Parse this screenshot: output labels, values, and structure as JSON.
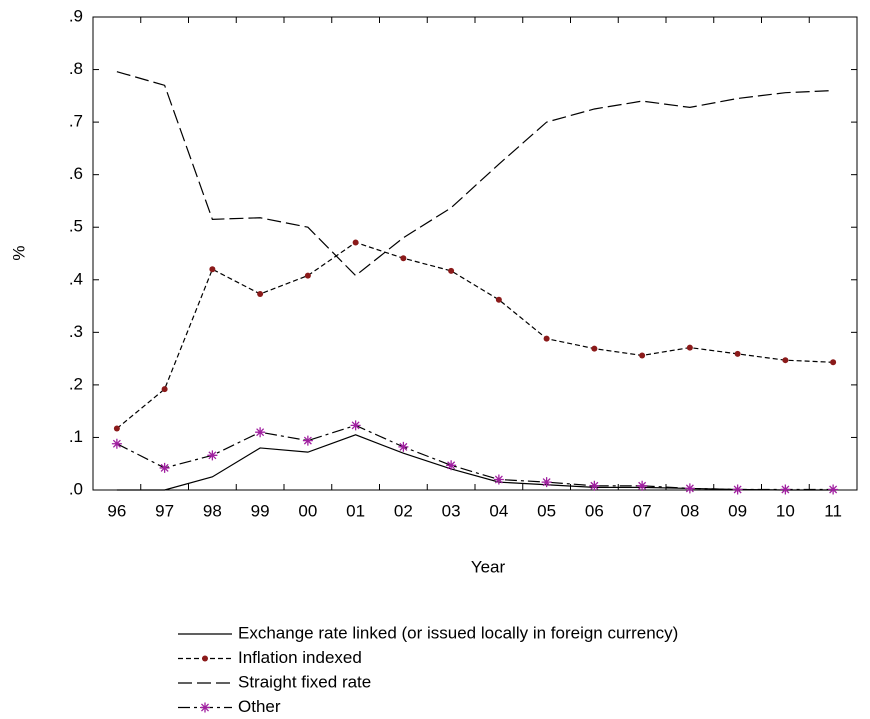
{
  "chart_data": {
    "type": "line",
    "y_label": "%",
    "x_label": "Year",
    "categories": [
      "96",
      "97",
      "98",
      "99",
      "00",
      "01",
      "02",
      "03",
      "04",
      "05",
      "06",
      "07",
      "08",
      "09",
      "10",
      "11"
    ],
    "ylim": [
      0,
      0.9
    ],
    "yticks": [
      {
        "value": 0,
        "label": ".0"
      },
      {
        "value": 0.1,
        "label": ".1"
      },
      {
        "value": 0.2,
        "label": ".2"
      },
      {
        "value": 0.3,
        "label": ".3"
      },
      {
        "value": 0.4,
        "label": ".4"
      },
      {
        "value": 0.5,
        "label": ".5"
      },
      {
        "value": 0.6,
        "label": ".6"
      },
      {
        "value": 0.7,
        "label": ".7"
      },
      {
        "value": 0.8,
        "label": ".8"
      },
      {
        "value": 0.9,
        "label": ".9"
      }
    ],
    "grid": false,
    "legend": "bottom",
    "series": [
      {
        "name": "Exchange rate linked (or issued locally in foreign currency)",
        "color": "#000000",
        "dash": "solid",
        "marker": "none",
        "marker_color": "#000000",
        "values": [
          0,
          0,
          0.025,
          0.08,
          0.072,
          0.105,
          0.07,
          0.04,
          0.015,
          0.01,
          0.005,
          0.005,
          0.003,
          0.001,
          0,
          0
        ]
      },
      {
        "name": "Inflation indexed",
        "color": "#000000",
        "dash": "short",
        "marker": "dot",
        "marker_color": "#8b1a1a",
        "values": [
          0.117,
          0.192,
          0.42,
          0.373,
          0.408,
          0.471,
          0.441,
          0.417,
          0.362,
          0.288,
          0.269,
          0.256,
          0.271,
          0.259,
          0.247,
          0.243
        ]
      },
      {
        "name": "Straight fixed rate",
        "color": "#000000",
        "dash": "long",
        "marker": "none",
        "marker_color": "#000000",
        "values": [
          0.796,
          0.77,
          0.515,
          0.518,
          0.5,
          0.408,
          0.48,
          0.537,
          0.62,
          0.7,
          0.725,
          0.74,
          0.728,
          0.745,
          0.756,
          0.76
        ]
      },
      {
        "name": "Other",
        "color": "#000000",
        "dash": "dashdot",
        "marker": "star",
        "marker_color": "#a020a0",
        "values": [
          0.088,
          0.042,
          0.066,
          0.11,
          0.094,
          0.123,
          0.082,
          0.047,
          0.02,
          0.015,
          0.008,
          0.008,
          0.003,
          0.001,
          0.001,
          0.001
        ]
      }
    ]
  }
}
